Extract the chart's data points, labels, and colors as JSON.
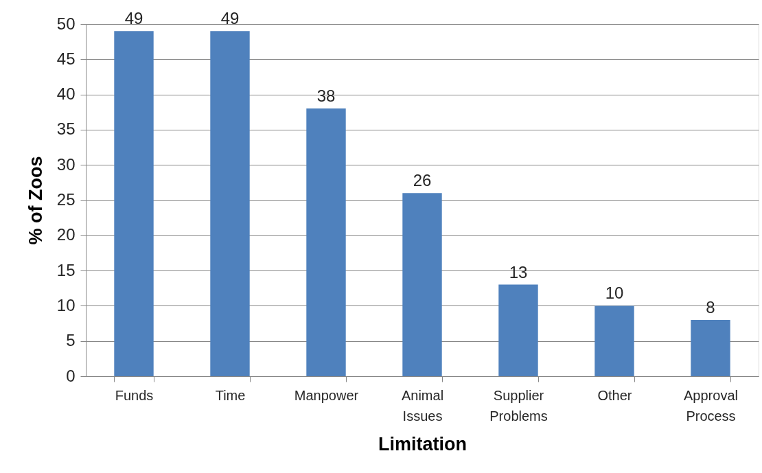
{
  "chart_data": {
    "type": "bar",
    "xlabel": "Limitation",
    "ylabel": "% of Zoos",
    "categories": [
      "Funds",
      "Time",
      "Manpower",
      "Animal Issues",
      "Supplier Problems",
      "Other",
      "Approval Process"
    ],
    "values": [
      49,
      49,
      38,
      26,
      13,
      10,
      8
    ],
    "color": "#4f81bd",
    "ylim": [
      0,
      50
    ],
    "yticks": [
      0,
      5,
      10,
      15,
      20,
      25,
      30,
      35,
      40,
      45,
      50
    ],
    "grid": "y",
    "data_labels": true
  }
}
